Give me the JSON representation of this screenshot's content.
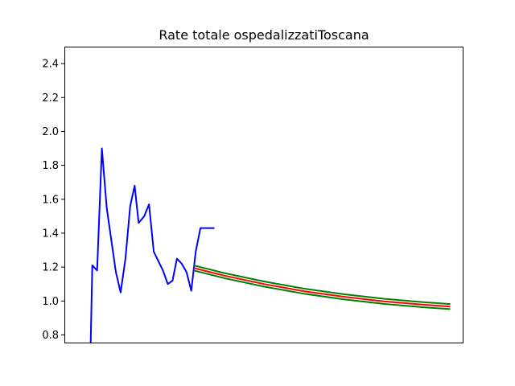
{
  "chart_data": {
    "type": "line",
    "title": "Rate totale ospedalizzatiToscana",
    "xlabel": "",
    "ylabel": "",
    "xlim": [
      0,
      100
    ],
    "ylim": [
      0.75,
      2.5
    ],
    "yticks": [
      0.8,
      1.0,
      1.2,
      1.4,
      1.6,
      1.8,
      2.0,
      2.2,
      2.4
    ],
    "ytick_labels": [
      "0.8",
      "1.0",
      "1.2",
      "1.4",
      "1.6",
      "1.8",
      "2.0",
      "2.2",
      "2.4"
    ],
    "xticks_visible": false,
    "grid": false,
    "legend": "none",
    "series": [
      {
        "color": "#0000ff",
        "x": [
          6.6,
          7.0,
          8.2,
          9.4,
          10.6,
          12.9,
          14.1,
          15.3,
          16.5,
          17.6,
          18.6,
          20.0,
          21.2,
          22.4,
          24.7,
          25.9,
          27.1,
          28.2,
          29.4,
          30.6,
          31.8,
          32.9,
          34.1,
          35.3,
          36.5,
          37.4,
          37.6
        ],
        "values": [
          0.75,
          1.21,
          1.18,
          1.9,
          1.55,
          1.17,
          1.05,
          1.25,
          1.56,
          1.68,
          1.46,
          1.5,
          1.57,
          1.29,
          1.18,
          1.1,
          1.12,
          1.25,
          1.22,
          1.17,
          1.06,
          1.29,
          1.43,
          1.43,
          1.43,
          1.43,
          1.43
        ]
      },
      {
        "color": "#008000",
        "x": [
          32.4,
          40,
          50,
          60,
          70,
          80,
          90,
          96.7
        ],
        "values": [
          1.21,
          1.165,
          1.115,
          1.073,
          1.04,
          1.013,
          0.993,
          0.982
        ]
      },
      {
        "color": "#ff0000",
        "x": [
          32.4,
          40,
          50,
          60,
          70,
          80,
          90,
          96.7
        ],
        "values": [
          1.195,
          1.15,
          1.1,
          1.058,
          1.025,
          0.998,
          0.978,
          0.967
        ]
      },
      {
        "color": "#008000",
        "x": [
          32.4,
          40,
          50,
          60,
          70,
          80,
          90,
          96.7
        ],
        "values": [
          1.18,
          1.135,
          1.085,
          1.043,
          1.01,
          0.983,
          0.963,
          0.952
        ]
      }
    ]
  }
}
